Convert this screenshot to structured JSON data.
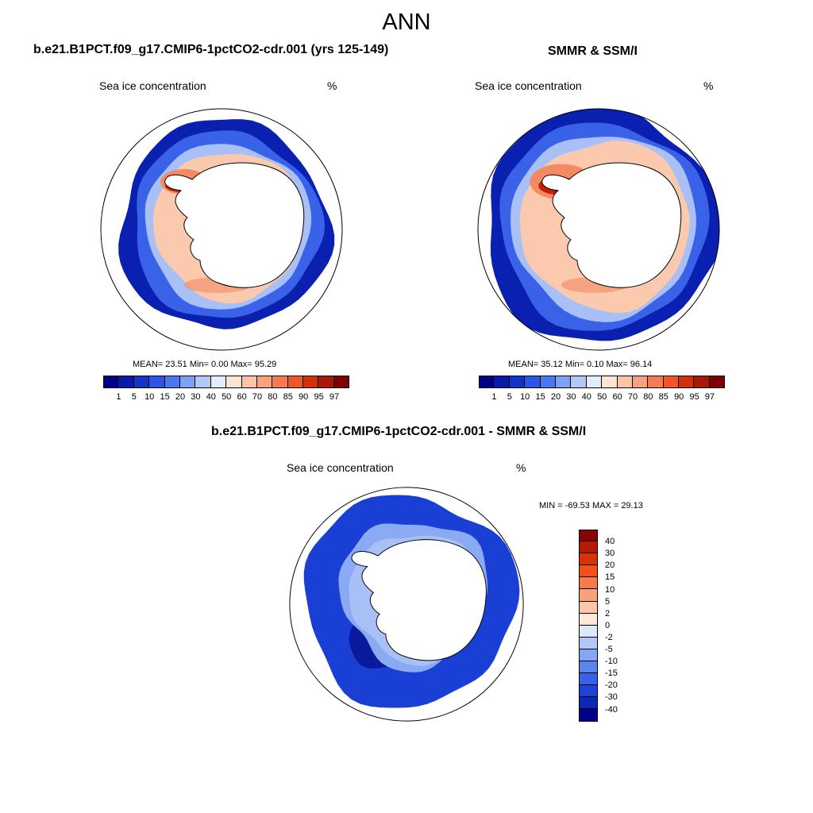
{
  "header": {
    "title": "ANN"
  },
  "panels": [
    {
      "title": "b.e21.B1PCT.f09_g17.CMIP6-1pctCO2-cdr.001 (yrs 125-149)",
      "left_label": "Sea ice concentration",
      "right_label": "%",
      "stats": "MEAN=  23.51  Min=   0.00  Max=  95.29"
    },
    {
      "title": "SMMR & SSM/I",
      "left_label": "Sea ice concentration",
      "right_label": "%",
      "stats": "MEAN=  35.12  Min=   0.10  Max=  96.14"
    },
    {
      "title": "b.e21.B1PCT.f09_g17.CMIP6-1pctCO2-cdr.001 - SMMR & SSM/I",
      "left_label": "Sea ice concentration",
      "right_label": "%",
      "stats": "MIN = -69.53 MAX =  29.13"
    }
  ],
  "colorbar_abs": {
    "labels": [
      "1",
      "5",
      "10",
      "15",
      "20",
      "30",
      "40",
      "50",
      "60",
      "70",
      "80",
      "85",
      "90",
      "95",
      "97"
    ],
    "colors": [
      "#00008b",
      "#0a1aa8",
      "#1434c8",
      "#2a55e6",
      "#4a78f0",
      "#7ea0f5",
      "#b4c8f8",
      "#e2ecfb",
      "#fde4d2",
      "#fbc4a8",
      "#f7a27e",
      "#f47c55",
      "#ef5628",
      "#d2300c",
      "#a81808",
      "#7e0000"
    ]
  },
  "colorbar_diff": {
    "labels": [
      "40",
      "30",
      "20",
      "15",
      "10",
      "5",
      "2",
      "0",
      "-2",
      "-5",
      "-10",
      "-15",
      "-20",
      "-30",
      "-40"
    ],
    "colors": [
      "#8b0000",
      "#b41a04",
      "#d83208",
      "#f2501c",
      "#f87a4a",
      "#faa07c",
      "#fcc6a8",
      "#fee8d8",
      "#dde8fb",
      "#b4c8f8",
      "#86a6f4",
      "#5a84f0",
      "#3a62e8",
      "#1e44d6",
      "#0d28b4",
      "#00008b"
    ]
  },
  "map_layers": {
    "ice_outer": "#0a20b0",
    "ice_mid": "#3a62e8",
    "ice_inner": "#a8c0f6",
    "warm_light": "#fbc9ae",
    "warm_mid": "#f38a62",
    "warm_dark": "#c41e06",
    "land": "#ffffff",
    "diff_outer": "#1a3fd4",
    "diff_deep": "#0a1a9c",
    "diff_light": "#8aaaf4"
  }
}
